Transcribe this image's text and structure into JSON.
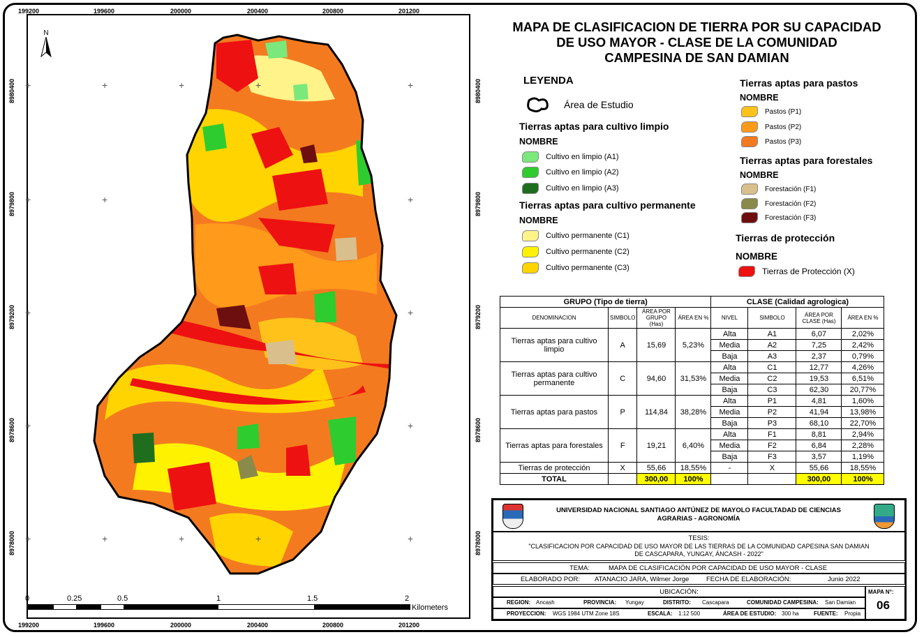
{
  "map": {
    "x_ticks": [
      "199200",
      "199600",
      "200000",
      "200400",
      "200800",
      "201200"
    ],
    "y_ticks": [
      "8980400",
      "8979800",
      "8979200",
      "8978600",
      "8978000"
    ],
    "north": "N",
    "scale_labels": [
      "0",
      "0.25",
      "0.5",
      "1",
      "1.5",
      "2"
    ],
    "scale_unit": "Kilometers"
  },
  "title": [
    "MAPA DE CLASIFICACION DE TIERRA POR SU CAPACIDAD",
    "DE USO MAYOR - CLASE DE LA COMUNIDAD",
    "CAMPESINA  DE SAN DAMIAN"
  ],
  "legend": {
    "heading": "LEYENDA",
    "study_area": "Área de Estudio",
    "nombre": "NOMBRE",
    "groups": [
      {
        "title": "Tierras aptas para cultivo limpio",
        "items": [
          {
            "label": "Cultivo en limpio (A1)",
            "color": "#7be87b"
          },
          {
            "label": "Cultivo en limpio (A2)",
            "color": "#2ecc2e"
          },
          {
            "label": "Cultivo en limpio (A3)",
            "color": "#1e6e1e"
          }
        ]
      },
      {
        "title": "Tierras aptas para cultivo permanente",
        "items": [
          {
            "label": "Cultivo permanente (C1)",
            "color": "#fff38a"
          },
          {
            "label": "Cultivo permanente (C2)",
            "color": "#fff200"
          },
          {
            "label": "Cultivo permanente (C3)",
            "color": "#ffd400"
          }
        ]
      },
      {
        "title": "Tierras aptas para pastos",
        "items": [
          {
            "label": "Pastos (P1)",
            "color": "#ffc21a"
          },
          {
            "label": "Pastos (P2)",
            "color": "#ff9a1a"
          },
          {
            "label": "Pastos (P3)",
            "color": "#f47a20"
          }
        ]
      },
      {
        "title": "Tierras aptas para forestales",
        "items": [
          {
            "label": "Forestación (F1)",
            "color": "#d9bf8c"
          },
          {
            "label": "Forestación (F2)",
            "color": "#8a8a4a"
          },
          {
            "label": "Forestación (F3)",
            "color": "#6e0f0f"
          }
        ]
      },
      {
        "title": "Tierras de protección",
        "items": [
          {
            "label": "Tierras de Protección (X)",
            "color": "#ee1111"
          }
        ]
      }
    ]
  },
  "table": {
    "grupo_header": "GRUPO (Tipo de tierra)",
    "clase_header": "CLASE (Calidad agrologica)",
    "cols": [
      "DENOMINACION",
      "SIMBOLO",
      "ÁREA POR GRUPO (Has)",
      "ÁREA EN %",
      "NIVEL",
      "SIMBOLO",
      "ÁREA POR CLASE (Has)",
      "ÁREA EN %"
    ],
    "groups": [
      {
        "name": "Tierras aptas para cultivo limpio",
        "sym": "A",
        "area": "15,69",
        "pct": "5,23%",
        "rows": [
          [
            "Alta",
            "A1",
            "6,07",
            "2,02%"
          ],
          [
            "Media",
            "A2",
            "7,25",
            "2,42%"
          ],
          [
            "Baja",
            "A3",
            "2,37",
            "0,79%"
          ]
        ]
      },
      {
        "name": "Tierras aptas para cultivo permanente",
        "sym": "C",
        "area": "94,60",
        "pct": "31,53%",
        "rows": [
          [
            "Alta",
            "C1",
            "12,77",
            "4,26%"
          ],
          [
            "Media",
            "C2",
            "19,53",
            "6,51%"
          ],
          [
            "Baja",
            "C3",
            "62,30",
            "20,77%"
          ]
        ]
      },
      {
        "name": "Tierras aptas para pastos",
        "sym": "P",
        "area": "114,84",
        "pct": "38,28%",
        "rows": [
          [
            "Alta",
            "P1",
            "4,81",
            "1,60%"
          ],
          [
            "Media",
            "P2",
            "41,94",
            "13,98%"
          ],
          [
            "Baja",
            "P3",
            "68,10",
            "22,70%"
          ]
        ]
      },
      {
        "name": "Tierras aptas para forestales",
        "sym": "F",
        "area": "19,21",
        "pct": "6,40%",
        "rows": [
          [
            "Alta",
            "F1",
            "8,81",
            "2,94%"
          ],
          [
            "Media",
            "F2",
            "6,84",
            "2,28%"
          ],
          [
            "Baja",
            "F3",
            "3,57",
            "1,19%"
          ]
        ]
      },
      {
        "name": "Tierras de protección",
        "sym": "X",
        "area": "55,66",
        "pct": "18,55%",
        "rows": [
          [
            "-",
            "X",
            "55,66",
            "18,55%"
          ]
        ]
      }
    ],
    "total_label": "TOTAL",
    "total_area": "300,00",
    "total_pct": "100%",
    "total_class_area": "300,00",
    "total_class_pct": "100%"
  },
  "info": {
    "university": "UNIVERSIDAD NACIONAL  SANTIAGO ANTÚNEZ DE MAYOLO FACULTADAD DE CIENCIAS",
    "university2": "AGRARIAS - AGRONOMÍA",
    "tesis_label": "TESIS:",
    "tesis": "\"CLASIFICACION POR CAPACIDAD  DE USO MAYOR DE LAS TIERRAS DE LA COMUNIDAD CAPESINA SAN DAMIAN",
    "tesis2": "DE  CASCAPARA, YUNGAY, ÁNCASH - 2022\"",
    "tema_label": "TEMA:",
    "tema": "MAPA DE CLASIFICACIÓN POR CAPACIDAD DE USO MAYOR - CLASE",
    "elaborado_label": "ELABORADO POR:",
    "elaborado": "ATANACIO JARA,  Wilmer Jorge",
    "fecha_label": "FECHA DE ELABORACIÓN:",
    "fecha": "Junio 2022",
    "ubicacion_label": "UBICACIÓN:",
    "region_label": "REGION:",
    "region": "Ancash",
    "provincia_label": "PROVINCIA:",
    "provincia": "Yungay",
    "distrito_label": "DISTRITO:",
    "distrito": "Cascapara",
    "comunidad_label": "COMUNIDAD CAMPESINA:",
    "comunidad": "San Damian",
    "proyeccion_label": "PROYECCION:",
    "proyeccion": "WGS 1984 UTM Zone 18S",
    "escala_label": "ESCALA:",
    "escala": "1:12 500",
    "area_label": "ÁREA DE ESTUDIO:",
    "area": "300 ha",
    "fuente_label": "FUENTE:",
    "fuente": "Propia",
    "mapa_label": "MAPA N°:",
    "mapa_num": "06"
  }
}
